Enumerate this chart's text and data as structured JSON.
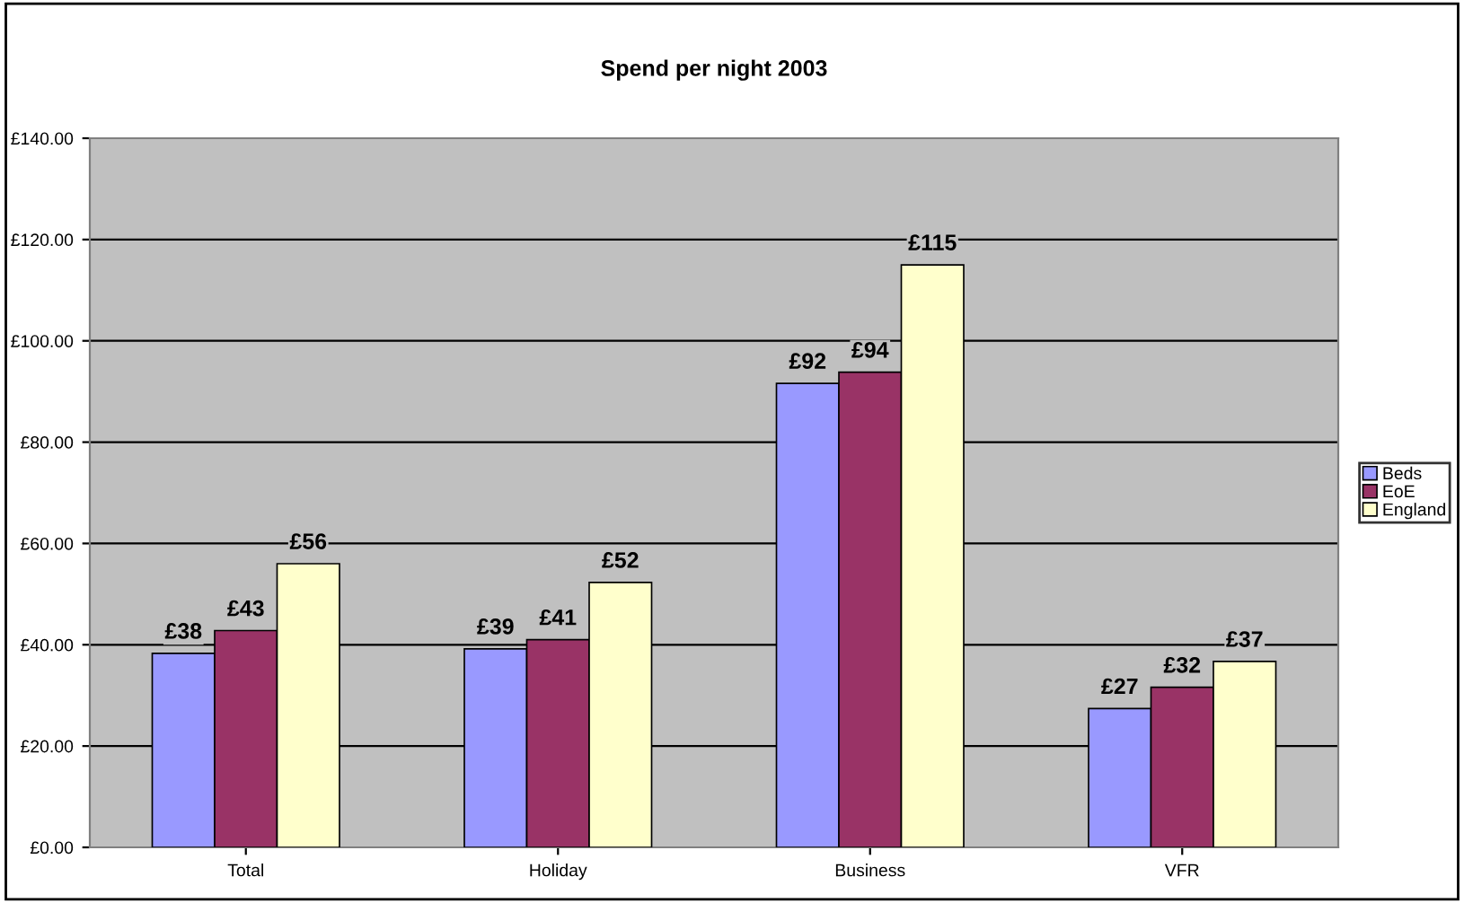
{
  "chart_data": {
    "type": "bar",
    "title": "Spend per night 2003",
    "categories": [
      "Total",
      "Holiday",
      "Business",
      "VFR"
    ],
    "series": [
      {
        "name": "Beds",
        "color": "#9999ff",
        "values": [
          38.3,
          39.2,
          91.6,
          27.4
        ],
        "value_labels": [
          "£38",
          "£39",
          "£92",
          "£27"
        ]
      },
      {
        "name": "EoE",
        "color": "#993366",
        "values": [
          42.8,
          41.0,
          93.8,
          31.6
        ],
        "value_labels": [
          "£43",
          "£41",
          "£94",
          "£32"
        ]
      },
      {
        "name": "England",
        "color": "#ffffcc",
        "values": [
          56.0,
          52.3,
          115.0,
          36.7
        ],
        "value_labels": [
          "£56",
          "£52",
          "£115",
          "£37"
        ]
      }
    ],
    "ylim": [
      0,
      140
    ],
    "yticks": [
      {
        "value": 0,
        "label": "£0.00"
      },
      {
        "value": 20,
        "label": "£20.00"
      },
      {
        "value": 40,
        "label": "£40.00"
      },
      {
        "value": 60,
        "label": "£60.00"
      },
      {
        "value": 80,
        "label": "£80.00"
      },
      {
        "value": 100,
        "label": "£100.00"
      },
      {
        "value": 120,
        "label": "£120.00"
      },
      {
        "value": 140,
        "label": "£140.00"
      }
    ],
    "grid": "y",
    "legend": "right"
  }
}
